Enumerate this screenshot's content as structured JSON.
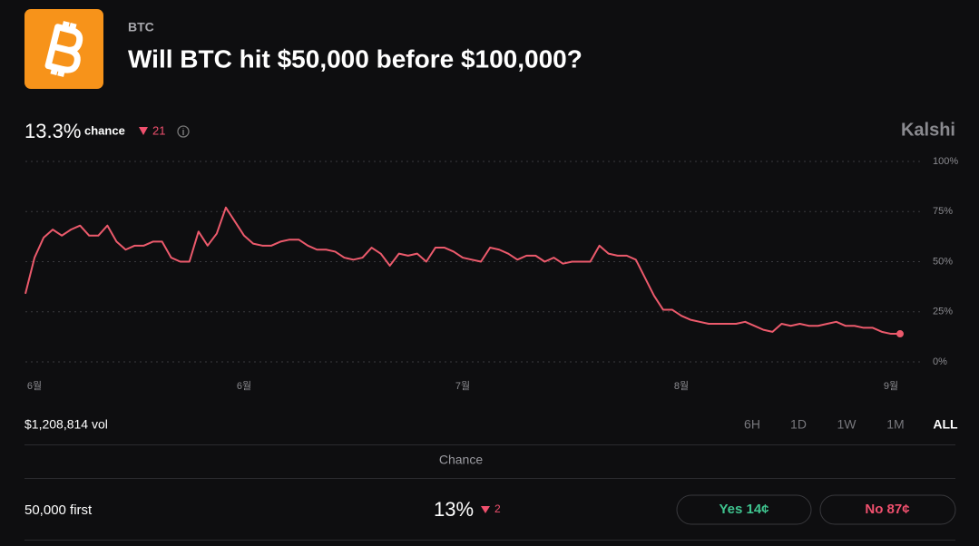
{
  "header": {
    "category": "BTC",
    "title": "Will BTC hit $50,000 before $100,000?"
  },
  "summary": {
    "chance": "13.3%",
    "chance_label": "chance",
    "change": "21",
    "brand": "Kalshi"
  },
  "chart_data": {
    "type": "line",
    "x": [
      0,
      1,
      2,
      3,
      4,
      5,
      6,
      7,
      8,
      9,
      10,
      11,
      12,
      13,
      14,
      15,
      16,
      17,
      18,
      19,
      20,
      21,
      22,
      23,
      24,
      25,
      26,
      27,
      28,
      29,
      30,
      31,
      32,
      33,
      34,
      35,
      36,
      37,
      38,
      39,
      40,
      41,
      42,
      43,
      44,
      45,
      46,
      47,
      48,
      49,
      50,
      51,
      52,
      53,
      54,
      55,
      56,
      57,
      58,
      59,
      60,
      61,
      62,
      63,
      64,
      65,
      66,
      67,
      68,
      69,
      70,
      71,
      72,
      73,
      74,
      75,
      76,
      77,
      78,
      79,
      80,
      81,
      82,
      83,
      84,
      85,
      86,
      87,
      88,
      89,
      90,
      91,
      92,
      93,
      94,
      95,
      96
    ],
    "series": [
      {
        "color": "#ec5a6c",
        "values": [
          34,
          52,
          62,
          66,
          63,
          66,
          68,
          63,
          63,
          68,
          60,
          56,
          58,
          58,
          60,
          60,
          52,
          50,
          50,
          65,
          58,
          64,
          77,
          70,
          63,
          59,
          58,
          58,
          60,
          61,
          61,
          58,
          56,
          56,
          55,
          52,
          51,
          52,
          57,
          54,
          48,
          54,
          53,
          54,
          50,
          57,
          57,
          55,
          52,
          51,
          50,
          57,
          56,
          54,
          51,
          53,
          53,
          50,
          52,
          49,
          50,
          50,
          50,
          58,
          54,
          53,
          53,
          51,
          42,
          33,
          26,
          26,
          23,
          21,
          20,
          19,
          19,
          19,
          19,
          20,
          18,
          16,
          15,
          19,
          18,
          19,
          18,
          18,
          19,
          20,
          18,
          18,
          17,
          17,
          15,
          14,
          14
        ]
      }
    ],
    "xlim": [
      0,
      96
    ],
    "xticks": [
      {
        "value": 1,
        "label": "6월"
      },
      {
        "value": 24,
        "label": "6월"
      },
      {
        "value": 48,
        "label": "7월"
      },
      {
        "value": 72,
        "label": "8월"
      },
      {
        "value": 95,
        "label": "9월"
      }
    ],
    "ylim": [
      0,
      100
    ],
    "yticks": [
      {
        "value": 0,
        "label": "0%"
      },
      {
        "value": 25,
        "label": "25%"
      },
      {
        "value": 50,
        "label": "50%"
      },
      {
        "value": 75,
        "label": "75%"
      },
      {
        "value": 100,
        "label": "100%"
      }
    ],
    "grid": true
  },
  "footer": {
    "volume": "$1,208,814 vol",
    "ranges": [
      "6H",
      "1D",
      "1W",
      "1M",
      "ALL"
    ],
    "active_range": 4
  },
  "table": {
    "header": "Chance",
    "rows": [
      {
        "label": "50,000 first",
        "chance": "13%",
        "change": "2",
        "yes": "Yes 14¢",
        "no": "No 87¢"
      }
    ]
  }
}
